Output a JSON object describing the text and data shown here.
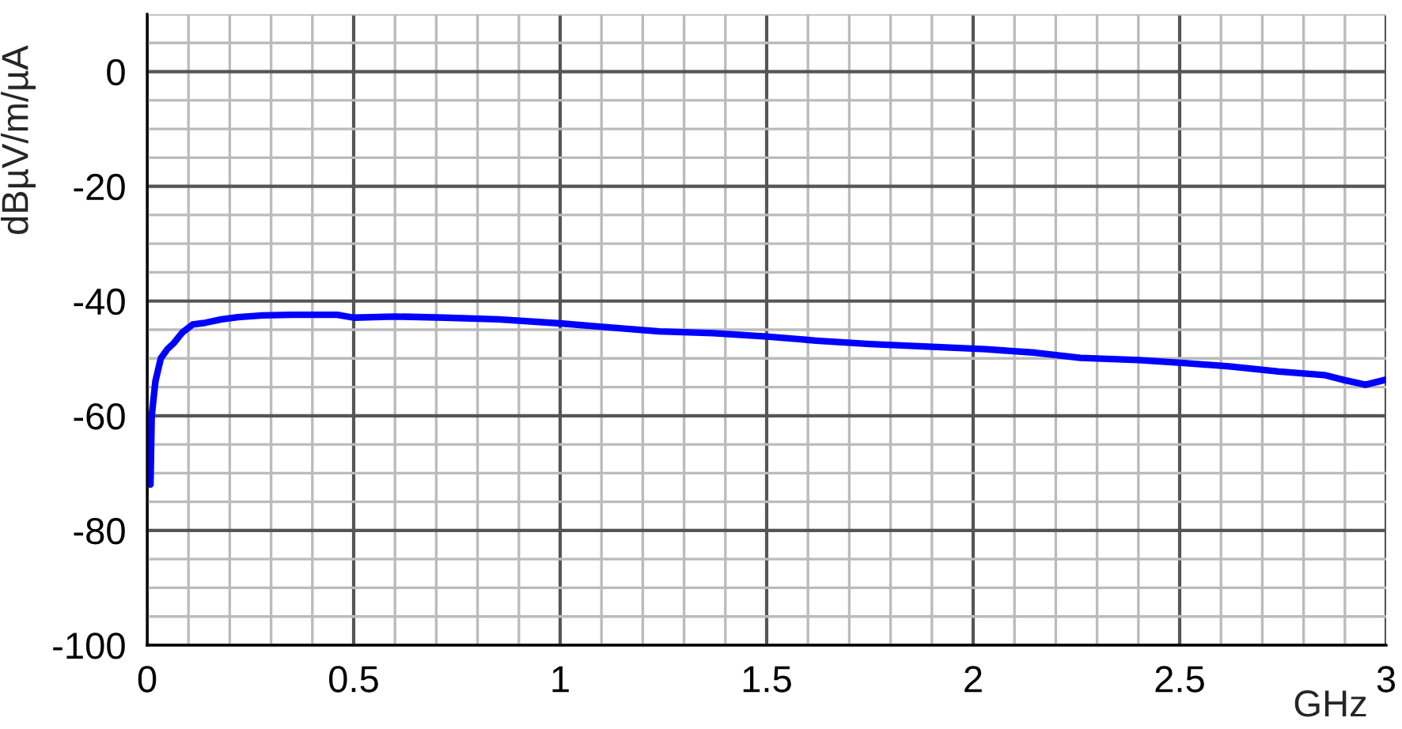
{
  "chart_data": {
    "type": "line",
    "xlabel": "GHz",
    "ylabel": "dBµV/m/µA",
    "x": [
      0.008,
      0.011,
      0.02,
      0.033,
      0.05,
      0.065,
      0.085,
      0.11,
      0.14,
      0.18,
      0.22,
      0.28,
      0.35,
      0.46,
      0.5,
      0.6,
      0.72,
      0.85,
      1.0,
      1.12,
      1.24,
      1.37,
      1.5,
      1.62,
      1.75,
      1.88,
      2.03,
      2.15,
      2.26,
      2.4,
      2.51,
      2.62,
      2.74,
      2.85,
      2.9,
      2.95,
      3.0
    ],
    "series": [
      {
        "color": "#0000ff",
        "values": [
          -72,
          -60,
          -54,
          -50,
          -48.3,
          -47.3,
          -45.5,
          -44.1,
          -43.8,
          -43.2,
          -42.8,
          -42.5,
          -42.4,
          -42.4,
          -42.9,
          -42.7,
          -42.9,
          -43.2,
          -43.9,
          -44.6,
          -45.3,
          -45.6,
          -46.2,
          -46.9,
          -47.5,
          -47.9,
          -48.4,
          -49.0,
          -49.9,
          -50.3,
          -50.8,
          -51.4,
          -52.3,
          -52.9,
          -53.8,
          -54.6,
          -53.7
        ]
      }
    ],
    "xlim": [
      0,
      3
    ],
    "xticks": [
      0,
      0.5,
      1,
      1.5,
      2,
      2.5,
      3
    ],
    "ylim": [
      -100,
      10
    ],
    "yticks": [
      -100,
      -80,
      -60,
      -40,
      -20,
      0
    ],
    "grid": true,
    "marker": "none",
    "line_style": "solid"
  }
}
